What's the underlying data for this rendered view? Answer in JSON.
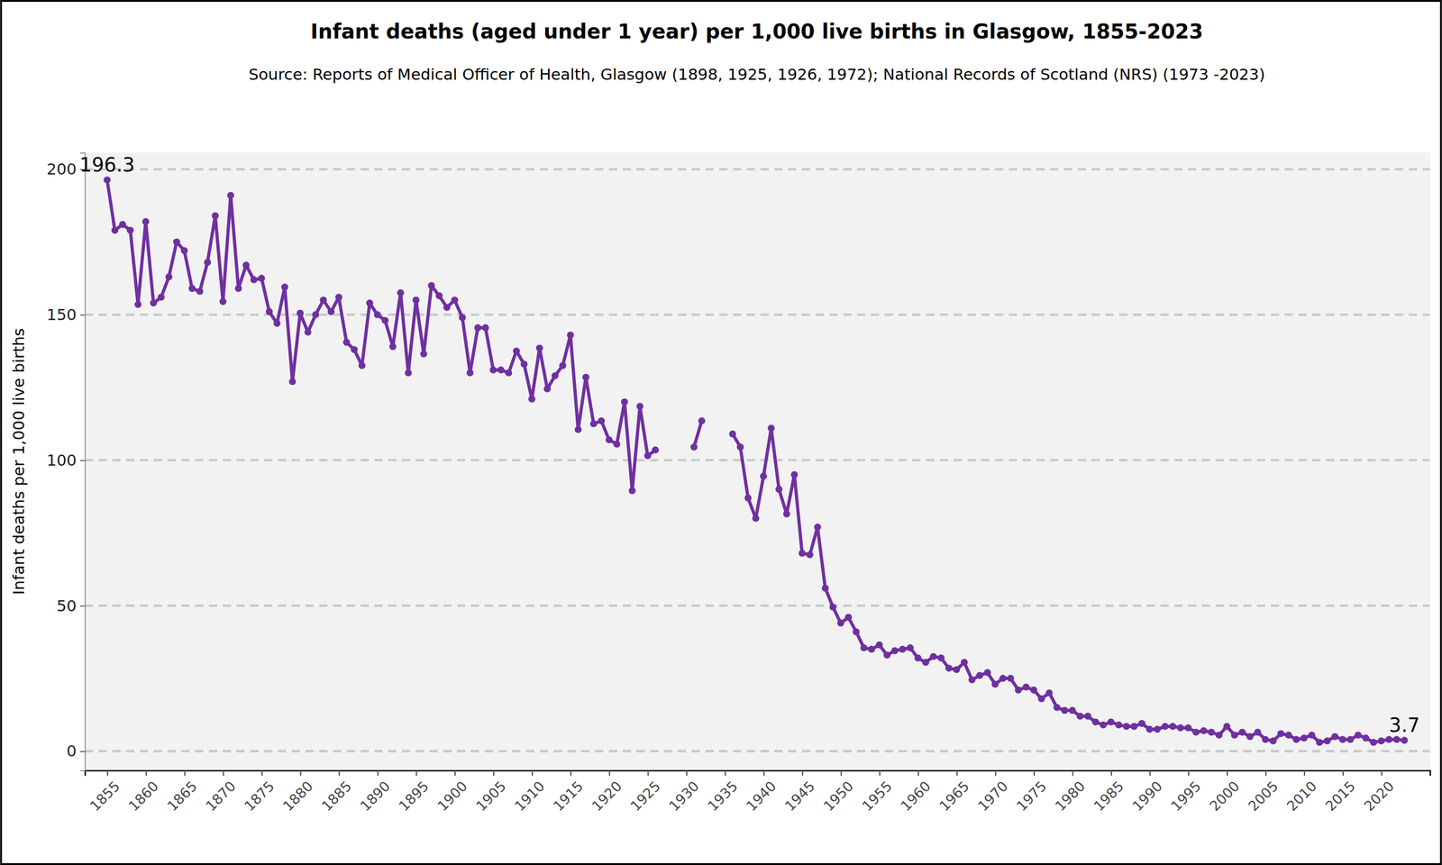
{
  "chart_data": {
    "type": "line",
    "title": "Infant deaths (aged under 1 year) per 1,000 live births in Glasgow, 1855-2023",
    "subtitle": "Source: Reports of Medical Officer of Health, Glasgow (1898, 1925, 1926, 1972); National Records of Scotland (NRS) (1973 -2023)",
    "y_label": "Infant deaths per 1,000 live births",
    "color": "#7030a0",
    "marker": "circle",
    "grid": true,
    "x": [
      1855,
      1856,
      1857,
      1858,
      1859,
      1860,
      1861,
      1862,
      1863,
      1864,
      1865,
      1866,
      1867,
      1868,
      1869,
      1870,
      1871,
      1872,
      1873,
      1874,
      1875,
      1876,
      1877,
      1878,
      1879,
      1880,
      1881,
      1882,
      1883,
      1884,
      1885,
      1886,
      1887,
      1888,
      1889,
      1890,
      1891,
      1892,
      1893,
      1894,
      1895,
      1896,
      1897,
      1898,
      1899,
      1900,
      1901,
      1902,
      1903,
      1904,
      1905,
      1906,
      1907,
      1908,
      1909,
      1910,
      1911,
      1912,
      1913,
      1914,
      1915,
      1916,
      1917,
      1918,
      1919,
      1920,
      1921,
      1922,
      1923,
      1924,
      1925,
      1926,
      1927,
      1928,
      1929,
      1930,
      1931,
      1932,
      1933,
      1934,
      1935,
      1936,
      1937,
      1938,
      1939,
      1940,
      1941,
      1942,
      1943,
      1944,
      1945,
      1946,
      1947,
      1948,
      1949,
      1950,
      1951,
      1952,
      1953,
      1954,
      1955,
      1956,
      1957,
      1958,
      1959,
      1960,
      1961,
      1962,
      1963,
      1964,
      1965,
      1966,
      1967,
      1968,
      1969,
      1970,
      1971,
      1972,
      1973,
      1974,
      1975,
      1976,
      1977,
      1978,
      1979,
      1980,
      1981,
      1982,
      1983,
      1984,
      1985,
      1986,
      1987,
      1988,
      1989,
      1990,
      1991,
      1992,
      1993,
      1994,
      1995,
      1996,
      1997,
      1998,
      1999,
      2000,
      2001,
      2002,
      2003,
      2004,
      2005,
      2006,
      2007,
      2008,
      2009,
      2010,
      2011,
      2012,
      2013,
      2014,
      2015,
      2016,
      2017,
      2018,
      2019,
      2020,
      2021,
      2022,
      2023
    ],
    "values": [
      196.3,
      179,
      181,
      179,
      153.5,
      182,
      154,
      156,
      163,
      175,
      172,
      159,
      158,
      168,
      184,
      154.5,
      191,
      159,
      167,
      162,
      162.5,
      151,
      147,
      159.5,
      127,
      150.5,
      144,
      150,
      155,
      151,
      156,
      140.5,
      138,
      132.5,
      154,
      150,
      148,
      139,
      157.5,
      130,
      155,
      136.5,
      160,
      156.5,
      152.5,
      155,
      149,
      130,
      145.5,
      145.5,
      131,
      131,
      130,
      137.5,
      133,
      121,
      138.5,
      124.5,
      129,
      132.5,
      143,
      110.5,
      128.5,
      112.5,
      113.5,
      107,
      105.5,
      120,
      89.5,
      118.5,
      101.5,
      103.5,
      null,
      null,
      null,
      null,
      104.5,
      113.5,
      null,
      null,
      null,
      109,
      104.5,
      87,
      80,
      94.5,
      111,
      90,
      81.5,
      95,
      68,
      67.5,
      77,
      56,
      49.5,
      44,
      46,
      41,
      35.5,
      35,
      36.5,
      33,
      34.5,
      35,
      35.5,
      32,
      30.5,
      32.5,
      32,
      28.5,
      28,
      30.5,
      24.5,
      26,
      27,
      23,
      25,
      25,
      21,
      22,
      21,
      18,
      20,
      15,
      14,
      14,
      12,
      12,
      10,
      9,
      10,
      9,
      8.5,
      8.5,
      9.5,
      7.5,
      7.5,
      8.5,
      8.5,
      8,
      8,
      6.5,
      7,
      6.5,
      5.5,
      8.5,
      5.5,
      6.5,
      5,
      6.5,
      4,
      3.5,
      6,
      5.5,
      4,
      4.5,
      5.5,
      3,
      3.5,
      5,
      4,
      4,
      5.5,
      4.5,
      3,
      3.5,
      4,
      4,
      3.7
    ],
    "xlim": [
      1852.1,
      2026.3
    ],
    "ylim": [
      -6.6,
      205.7
    ],
    "xticks": [
      1855,
      1860,
      1865,
      1870,
      1875,
      1880,
      1885,
      1890,
      1895,
      1900,
      1905,
      1910,
      1915,
      1920,
      1925,
      1930,
      1935,
      1940,
      1945,
      1950,
      1955,
      1960,
      1965,
      1970,
      1975,
      1980,
      1985,
      1990,
      1995,
      2000,
      2005,
      2010,
      2015,
      2020
    ],
    "yticks": [
      0,
      50,
      100,
      150,
      200
    ],
    "annotations": [
      {
        "text": "196.3",
        "x": 1855,
        "y": 196.3
      },
      {
        "text": "3.7",
        "x": 2023,
        "y": 3.7
      }
    ]
  }
}
